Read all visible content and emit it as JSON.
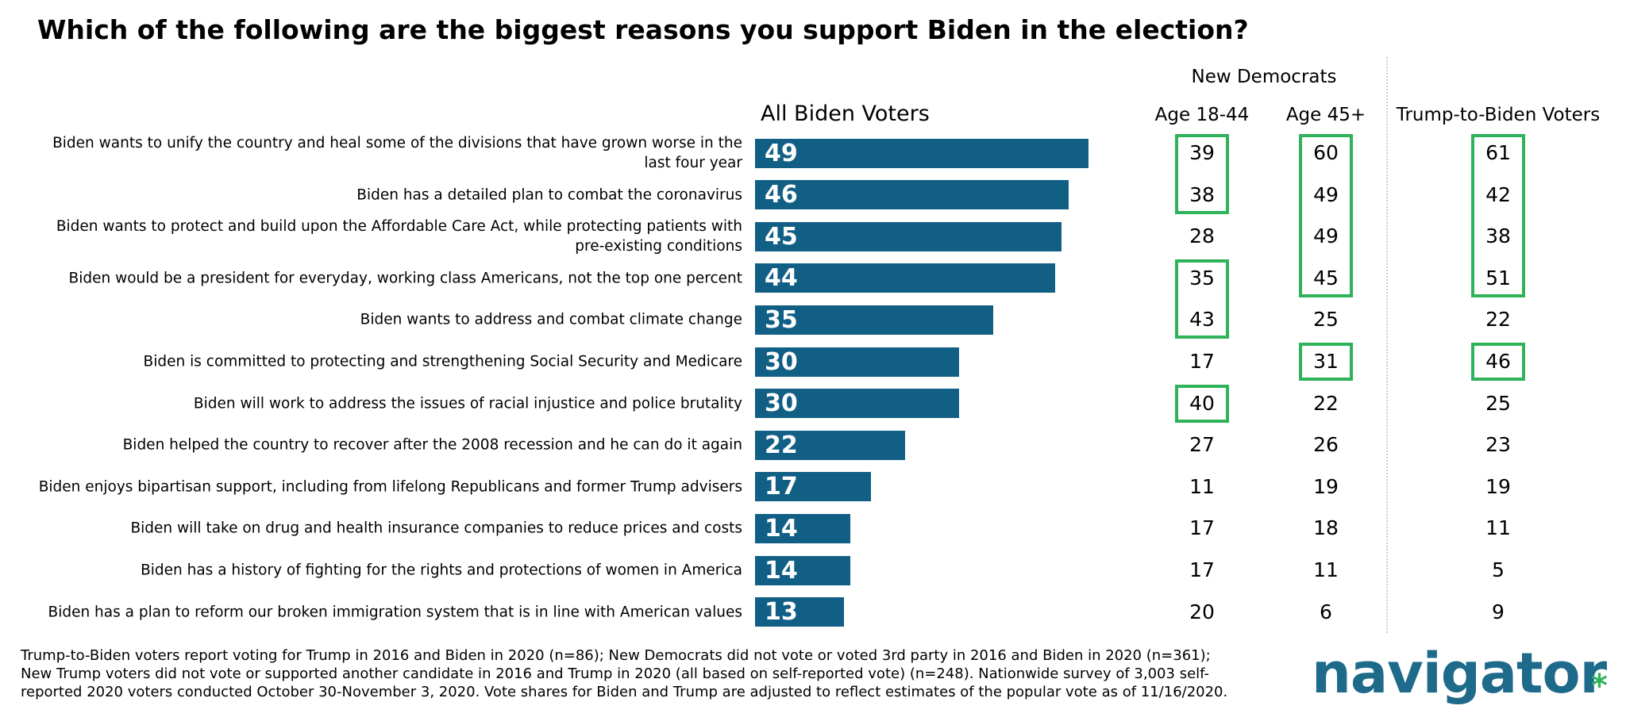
{
  "chart_data": {
    "type": "bar",
    "title": "Which of the following are the biggest reasons you support Biden in the election?",
    "categories": [
      "Biden wants to unify the country and heal some of the divisions that have grown worse in the last four year",
      "Biden has a detailed plan to combat the coronavirus",
      "Biden wants to protect and build upon the Affordable Care Act, while protecting patients with pre-existing conditions",
      "Biden would be a president for everyday, working class Americans, not the top one percent",
      "Biden wants to address and combat climate change",
      "Biden is committed to protecting and strengthening Social Security and Medicare",
      "Biden will work to address the issues of racial injustice and police brutality",
      "Biden helped the country to recover after the 2008 recession and he can do it again",
      "Biden enjoys bipartisan support, including from lifelong Republicans and former Trump advisers",
      "Biden will take on drug and health insurance companies to reduce prices and costs",
      "Biden has a history of fighting for the rights and protections of women in America",
      "Biden has a plan to reform our broken immigration system that is in line with American values"
    ],
    "series": [
      {
        "name": "All Biden Voters",
        "color": "#125f85",
        "values": [
          49,
          46,
          45,
          44,
          35,
          30,
          30,
          22,
          17,
          14,
          14,
          13
        ]
      }
    ],
    "column_group": "New Democrats",
    "columns": [
      {
        "name": "Age 18-44",
        "values": [
          39,
          38,
          28,
          35,
          43,
          17,
          40,
          27,
          11,
          17,
          17,
          20
        ],
        "highlighted": [
          true,
          true,
          false,
          true,
          true,
          false,
          true,
          false,
          false,
          false,
          false,
          false
        ]
      },
      {
        "name": "Age 45+",
        "values": [
          60,
          49,
          49,
          45,
          25,
          31,
          22,
          26,
          19,
          18,
          11,
          6
        ],
        "highlighted": [
          true,
          true,
          true,
          true,
          false,
          true,
          false,
          false,
          false,
          false,
          false,
          false
        ]
      },
      {
        "name": "Trump-to-Biden Voters",
        "values": [
          61,
          42,
          38,
          51,
          22,
          46,
          25,
          23,
          19,
          11,
          5,
          9
        ],
        "highlighted": [
          true,
          true,
          true,
          true,
          false,
          true,
          false,
          false,
          false,
          false,
          false,
          false
        ]
      }
    ],
    "highlight_color": "#2fb35a",
    "source_note": [
      "Trump-to-Biden voters report voting for Trump in 2016 and Biden in 2020 (n=86); New Democrats did not vote or voted 3rd party in 2016 and Biden in 2020 (n=361);",
      "New Trump voters did not vote or supported another candidate in 2016 and Trump in 2020 (all based on self-reported vote) (n=248). Nationwide survey of 3,003 self-",
      "reported 2020 voters conducted October 30-November 3, 2020. Vote shares for Biden and Trump are adjusted to reflect estimates of the popular vote as of 11/16/2020."
    ],
    "logo": "navigator",
    "logo_mark": "*"
  }
}
